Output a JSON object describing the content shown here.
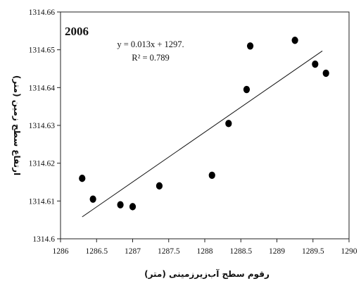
{
  "chart_data": {
    "type": "scatter",
    "title": "2006",
    "xlabel": "رقوم سطح آب‌زیرزمینی (متر)",
    "ylabel": "ارتفاع سطح زمین (متر)",
    "xlim": [
      1286,
      1290
    ],
    "ylim": [
      1314.6,
      1314.66
    ],
    "xticks": [
      1286,
      1286.5,
      1287,
      1287.5,
      1288,
      1288.5,
      1289,
      1289.5,
      1290
    ],
    "xtick_labels": [
      "1286",
      "1286.5",
      "1287",
      "1287.5",
      "1288",
      "1288.5",
      "1289",
      "1289.5",
      "1290"
    ],
    "yticks": [
      1314.6,
      1314.61,
      1314.62,
      1314.63,
      1314.64,
      1314.65,
      1314.66
    ],
    "ytick_labels": [
      "1314.6",
      "1314.61",
      "1314.62",
      "1314.63",
      "1314.64",
      "1314.65",
      "1314.66"
    ],
    "grid": false,
    "points": [
      {
        "x": 1286.3,
        "y": 1314.616
      },
      {
        "x": 1286.45,
        "y": 1314.6105
      },
      {
        "x": 1286.83,
        "y": 1314.609
      },
      {
        "x": 1287.0,
        "y": 1314.6085
      },
      {
        "x": 1287.37,
        "y": 1314.614
      },
      {
        "x": 1288.1,
        "y": 1314.6168
      },
      {
        "x": 1288.33,
        "y": 1314.6305
      },
      {
        "x": 1288.58,
        "y": 1314.6395
      },
      {
        "x": 1288.63,
        "y": 1314.651
      },
      {
        "x": 1289.25,
        "y": 1314.6525
      },
      {
        "x": 1289.53,
        "y": 1314.6462
      },
      {
        "x": 1289.68,
        "y": 1314.6438
      }
    ],
    "trendline": {
      "x": [
        1286.3,
        1289.63
      ],
      "y": [
        1314.6058,
        1314.6497
      ],
      "equation": "y = 0.013x + 1297.",
      "r2_label": "R² = 0.789"
    }
  }
}
